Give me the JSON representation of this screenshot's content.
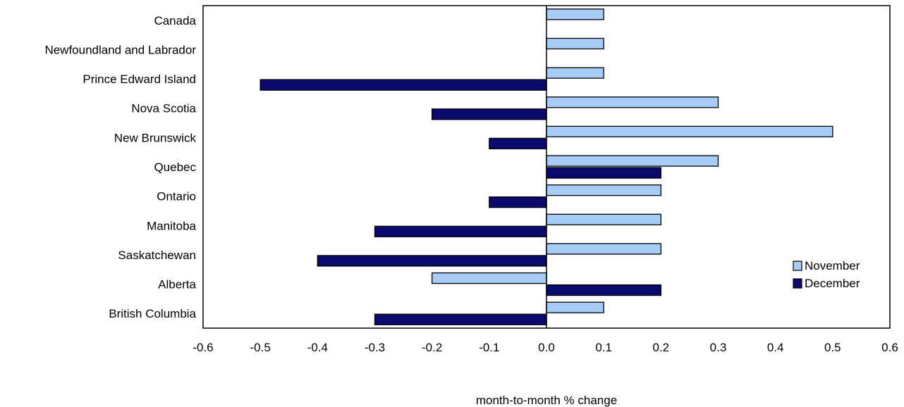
{
  "chart_data": {
    "type": "bar",
    "orientation": "horizontal",
    "xlabel": "month-to-month % change",
    "xlim": [
      -0.6,
      0.6
    ],
    "xticks": [
      "-0.6",
      "-0.5",
      "-0.4",
      "-0.3",
      "-0.2",
      "-0.1",
      "0.0",
      "0.1",
      "0.2",
      "0.3",
      "0.4",
      "0.5",
      "0.6"
    ],
    "legend_position": "bottom-right",
    "categories": [
      "Canada",
      "Newfoundland and Labrador",
      "Prince Edward Island",
      "Nova Scotia",
      "New Brunswick",
      "Quebec",
      "Ontario",
      "Manitoba",
      "Saskatchewan",
      "Alberta",
      "British Columbia"
    ],
    "series": [
      {
        "name": "November",
        "color": "#a6cdf7",
        "values": [
          0.1,
          0.1,
          0.1,
          0.3,
          0.5,
          0.3,
          0.2,
          0.2,
          0.2,
          -0.2,
          0.1
        ]
      },
      {
        "name": "December",
        "color": "#0a0a6e",
        "values": [
          0.0,
          0.0,
          -0.5,
          -0.2,
          -0.1,
          0.2,
          -0.1,
          -0.3,
          -0.4,
          0.2,
          -0.3
        ]
      }
    ]
  }
}
